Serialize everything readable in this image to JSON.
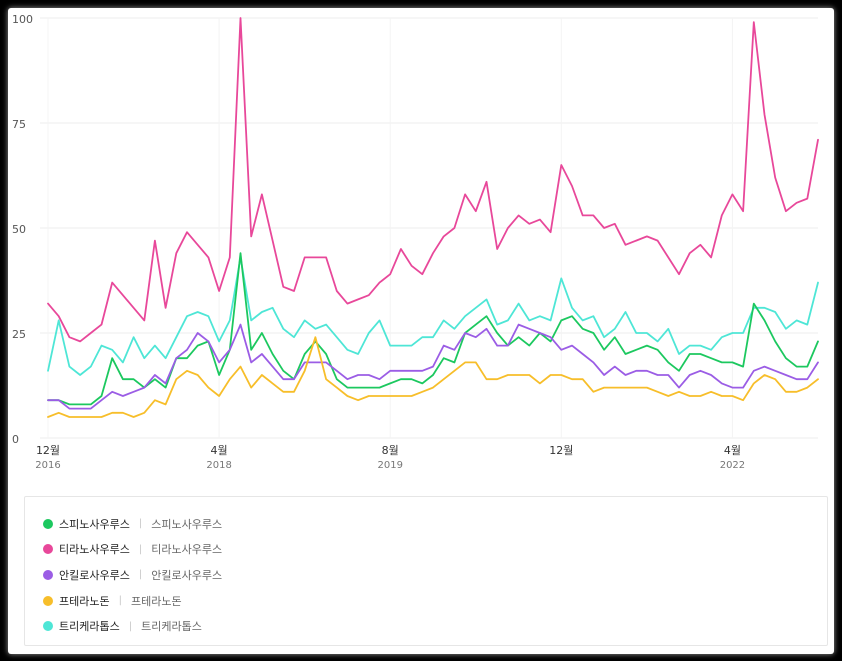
{
  "chart_data": {
    "type": "line",
    "ylim": [
      0,
      100
    ],
    "y_ticks": [
      0,
      25,
      50,
      75,
      100
    ],
    "y_tick_labels": [
      "0",
      "25",
      "50",
      "75",
      "100"
    ],
    "x_ticks": [
      {
        "index": 0,
        "label": "12월",
        "sub": "2016"
      },
      {
        "index": 16,
        "label": "4월",
        "sub": "2018"
      },
      {
        "index": 32,
        "label": "8월",
        "sub": "2019"
      },
      {
        "index": 48,
        "label": "12월",
        "sub": ""
      },
      {
        "index": 64,
        "label": "4월",
        "sub": "2022"
      }
    ],
    "grid": true,
    "legend_position": "bottom",
    "series": [
      {
        "name": "티라노사우루스",
        "sub": "티라노사우루스",
        "color": "#e8489a",
        "values": [
          32,
          29,
          24,
          23,
          25,
          27,
          37,
          34,
          31,
          28,
          47,
          31,
          44,
          49,
          46,
          43,
          35,
          43,
          100,
          48,
          58,
          47,
          36,
          35,
          43,
          43,
          43,
          35,
          32,
          33,
          34,
          37,
          39,
          45,
          41,
          39,
          44,
          48,
          50,
          58,
          54,
          61,
          45,
          50,
          53,
          51,
          52,
          49,
          65,
          60,
          53,
          53,
          50,
          51,
          46,
          47,
          48,
          47,
          43,
          39,
          44,
          46,
          43,
          53,
          58,
          54,
          99,
          77,
          62,
          54,
          56,
          57,
          71
        ]
      },
      {
        "name": "트리케라톱스",
        "sub": "트리케라톱스",
        "color": "#4ee6d6",
        "values": [
          16,
          28,
          17,
          15,
          17,
          22,
          21,
          18,
          24,
          19,
          22,
          19,
          24,
          29,
          30,
          29,
          23,
          28,
          43,
          28,
          30,
          31,
          26,
          24,
          28,
          26,
          27,
          24,
          21,
          20,
          25,
          28,
          22,
          22,
          22,
          24,
          24,
          28,
          26,
          29,
          31,
          33,
          27,
          28,
          32,
          28,
          29,
          28,
          38,
          31,
          28,
          29,
          24,
          26,
          30,
          25,
          25,
          23,
          26,
          20,
          22,
          22,
          21,
          24,
          25,
          25,
          31,
          31,
          30,
          26,
          28,
          27,
          37
        ]
      },
      {
        "name": "스피노사우루스",
        "sub": "스피노사우루스",
        "color": "#1cc85f",
        "values": [
          9,
          9,
          8,
          8,
          8,
          10,
          19,
          14,
          14,
          12,
          14,
          12,
          19,
          19,
          22,
          23,
          15,
          21,
          44,
          21,
          25,
          20,
          16,
          14,
          20,
          23,
          20,
          14,
          12,
          12,
          12,
          12,
          13,
          14,
          14,
          13,
          15,
          19,
          18,
          25,
          27,
          29,
          25,
          22,
          24,
          22,
          25,
          23,
          28,
          29,
          26,
          25,
          21,
          24,
          20,
          21,
          22,
          21,
          18,
          16,
          20,
          20,
          19,
          18,
          18,
          17,
          32,
          28,
          23,
          19,
          17,
          17,
          23
        ]
      },
      {
        "name": "안킬로사우루스",
        "sub": "안킬로사우루스",
        "color": "#9b5de5",
        "values": [
          9,
          9,
          7,
          7,
          7,
          9,
          11,
          10,
          11,
          12,
          15,
          13,
          19,
          21,
          25,
          23,
          18,
          21,
          27,
          18,
          20,
          17,
          14,
          14,
          18,
          18,
          18,
          16,
          14,
          15,
          15,
          14,
          16,
          16,
          16,
          16,
          17,
          22,
          21,
          25,
          24,
          26,
          22,
          22,
          27,
          26,
          25,
          24,
          21,
          22,
          20,
          18,
          15,
          17,
          15,
          16,
          16,
          15,
          15,
          12,
          15,
          16,
          15,
          13,
          12,
          12,
          16,
          17,
          16,
          15,
          14,
          14,
          18
        ]
      },
      {
        "name": "프테라노돈",
        "sub": "프테라노돈",
        "color": "#f7be2a",
        "values": [
          5,
          6,
          5,
          5,
          5,
          5,
          6,
          6,
          5,
          6,
          9,
          8,
          14,
          16,
          15,
          12,
          10,
          14,
          17,
          12,
          15,
          13,
          11,
          11,
          16,
          24,
          14,
          12,
          10,
          9,
          10,
          10,
          10,
          10,
          10,
          11,
          12,
          14,
          16,
          18,
          18,
          14,
          14,
          15,
          15,
          15,
          13,
          15,
          15,
          14,
          14,
          11,
          12,
          12,
          12,
          12,
          12,
          11,
          10,
          11,
          10,
          10,
          11,
          10,
          10,
          9,
          13,
          15,
          14,
          11,
          11,
          12,
          14
        ]
      }
    ]
  },
  "legend": [
    {
      "name": "스피노사우루스",
      "sub": "스피노사우루스",
      "color": "#1cc85f"
    },
    {
      "name": "티라노사우루스",
      "sub": "티라노사우루스",
      "color": "#e8489a"
    },
    {
      "name": "안킬로사우루스",
      "sub": "안킬로사우루스",
      "color": "#9b5de5"
    },
    {
      "name": "프테라노돈",
      "sub": "프테라노돈",
      "color": "#f7be2a"
    },
    {
      "name": "트리케라톱스",
      "sub": "트리케라톱스",
      "color": "#4ee6d6"
    }
  ],
  "legend_separator": "|"
}
